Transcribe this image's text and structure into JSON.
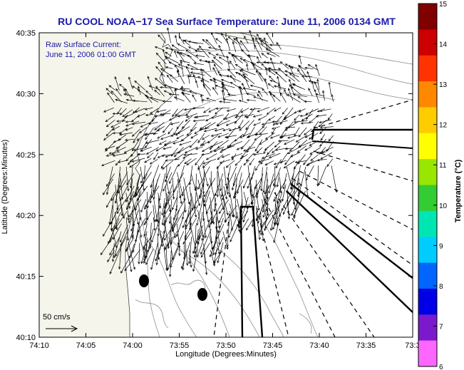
{
  "title": "RU COOL  NOAA−17  Sea Surface Temperature:  June 11, 2006 0134 GMT",
  "annotation": {
    "line1": "Raw Surface Current:",
    "line2": "June 11, 2006 01:00 GMT"
  },
  "axes": {
    "xlabel": "Longitude (Degrees:Minutes)",
    "ylabel": "Latitude (Degrees:Minutes)",
    "x_ticks": [
      "74:10",
      "74:05",
      "74:00",
      "73:55",
      "73:50",
      "73:45",
      "73:40",
      "73:35",
      "73:3"
    ],
    "y_ticks": [
      "40:35",
      "40:30",
      "40:25",
      "40:20",
      "40:15",
      "40:10"
    ]
  },
  "scale": {
    "label": "50 cm/s"
  },
  "colorbar": {
    "label": "Temperature (°C)",
    "ticks": [
      "15",
      "14",
      "13",
      "12",
      "11",
      "10",
      "9",
      "8",
      "7",
      "6"
    ],
    "colors": [
      "#ff66ff",
      "#7a1acc",
      "#0000e6",
      "#0066ff",
      "#00ccff",
      "#00e6b3",
      "#33cc33",
      "#99e600",
      "#ffff00",
      "#ffcc00",
      "#ff8800",
      "#ff3300",
      "#cc0000",
      "#800000"
    ]
  },
  "colors": {
    "title": "#1a1aa8",
    "land": "#f5f5eb",
    "ocean": "#ffffff",
    "contour": "#9a9a9a",
    "vector": "#000000"
  }
}
